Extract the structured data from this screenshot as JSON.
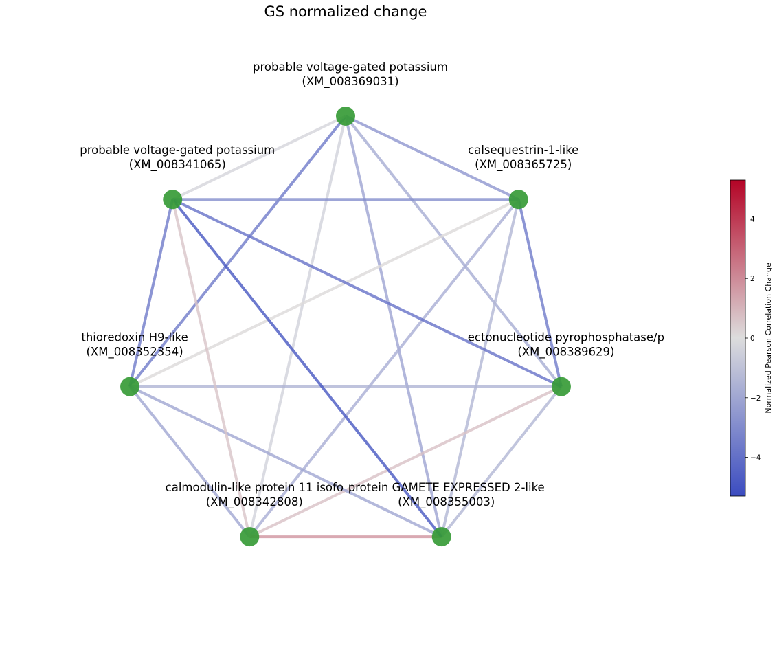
{
  "title": "GS normalized change",
  "colorbar": {
    "label": "Normalized Pearson Correlation Change",
    "min": -5.3,
    "max": 5.3,
    "ticks": [
      {
        "value": 4,
        "label": "4"
      },
      {
        "value": 2,
        "label": "2"
      },
      {
        "value": 0,
        "label": "0"
      },
      {
        "value": -2,
        "label": "−2"
      },
      {
        "value": -4,
        "label": "−4"
      }
    ],
    "colors": {
      "low": "#3b4cc0",
      "mid": "#dddddd",
      "high": "#b40426"
    }
  },
  "node_color": "#339933",
  "nodes": [
    {
      "id": "n1",
      "name": "probable voltage-gated potassium",
      "accession": "(XM_008369031)"
    },
    {
      "id": "n2",
      "name": "calsequestrin-1-like",
      "accession": "(XM_008365725)"
    },
    {
      "id": "n3",
      "name": "ectonucleotide pyrophosphatase/p",
      "accession": "(XM_008389629)"
    },
    {
      "id": "n4",
      "name": "protein GAMETE EXPRESSED 2-like",
      "accession": "(XM_008355003)"
    },
    {
      "id": "n5",
      "name": "calmodulin-like protein 11 isofo",
      "accession": "(XM_008342808)"
    },
    {
      "id": "n6",
      "name": "thioredoxin H9-like",
      "accession": "(XM_008352354)"
    },
    {
      "id": "n7",
      "name": "probable voltage-gated potassium",
      "accession": "(XM_008341065)"
    }
  ],
  "edges": [
    {
      "source": "n1",
      "target": "n2",
      "value": -2.6
    },
    {
      "source": "n1",
      "target": "n3",
      "value": -1.8
    },
    {
      "source": "n1",
      "target": "n4",
      "value": -2.1
    },
    {
      "source": "n1",
      "target": "n5",
      "value": -0.4
    },
    {
      "source": "n1",
      "target": "n6",
      "value": -3.6
    },
    {
      "source": "n1",
      "target": "n7",
      "value": -0.3
    },
    {
      "source": "n2",
      "target": "n3",
      "value": -3.6
    },
    {
      "source": "n2",
      "target": "n4",
      "value": -1.4
    },
    {
      "source": "n2",
      "target": "n5",
      "value": -1.7
    },
    {
      "source": "n2",
      "target": "n6",
      "value": 0.1
    },
    {
      "source": "n2",
      "target": "n7",
      "value": -2.9
    },
    {
      "source": "n3",
      "target": "n4",
      "value": -1.4
    },
    {
      "source": "n3",
      "target": "n5",
      "value": 0.7
    },
    {
      "source": "n3",
      "target": "n6",
      "value": -1.5
    },
    {
      "source": "n3",
      "target": "n7",
      "value": -3.9
    },
    {
      "source": "n4",
      "target": "n5",
      "value": 1.8
    },
    {
      "source": "n4",
      "target": "n6",
      "value": -2.0
    },
    {
      "source": "n4",
      "target": "n7",
      "value": -4.9
    },
    {
      "source": "n5",
      "target": "n6",
      "value": -2.0
    },
    {
      "source": "n5",
      "target": "n7",
      "value": 0.6
    },
    {
      "source": "n6",
      "target": "n7",
      "value": -3.6
    }
  ]
}
